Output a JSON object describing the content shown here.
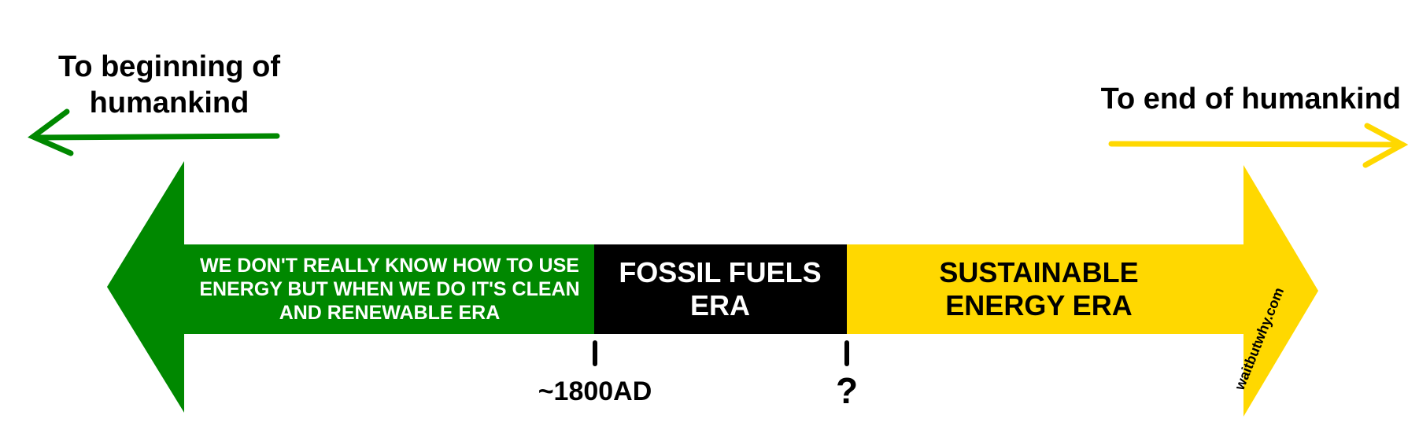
{
  "headings": {
    "left": "To beginning of humankind",
    "right": "To end of humankind"
  },
  "eras": [
    {
      "label": "WE DON'T REALLY KNOW HOW TO USE ENERGY BUT WHEN WE DO IT'S CLEAN AND RENEWABLE ERA",
      "color": "#008800",
      "text_color": "#ffffff"
    },
    {
      "label": "FOSSIL FUELS ERA",
      "color": "#000000",
      "text_color": "#ffffff"
    },
    {
      "label": "SUSTAINABLE ENERGY ERA",
      "color": "#ffd800",
      "text_color": "#000000"
    }
  ],
  "markers": [
    {
      "label": "~1800AD"
    },
    {
      "label": "?"
    }
  ],
  "watermark": "waitbutwhy.com",
  "arrows": {
    "left_color": "#008800",
    "right_color": "#ffd800"
  }
}
